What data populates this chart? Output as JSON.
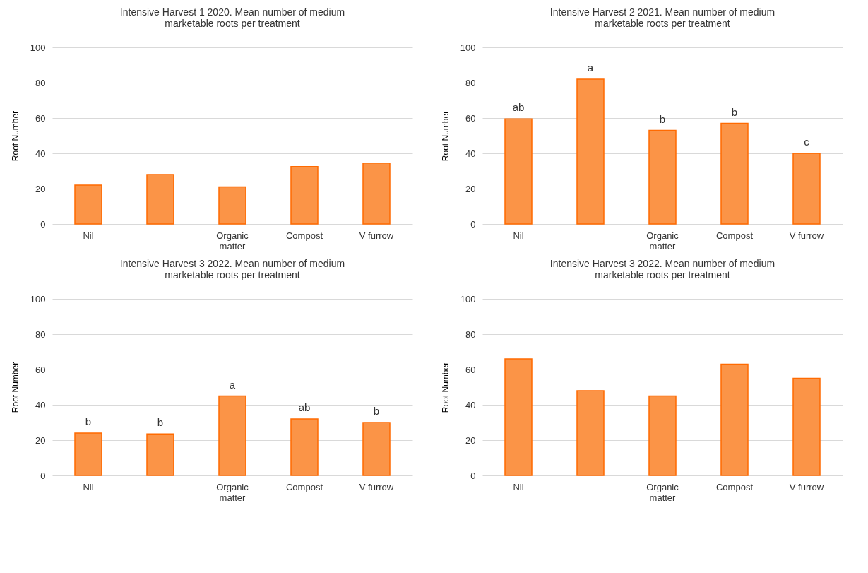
{
  "chart_data": [
    {
      "type": "bar",
      "title": "Intensive Harvest 1 2020. Mean number of medium marketable roots per treatment",
      "ylabel": "Root Number",
      "categories": [
        "Nil",
        null,
        "Organic matter",
        "Compost",
        "V furrow"
      ],
      "values": [
        22,
        28,
        21,
        32.5,
        34.5
      ],
      "color": "#fb9447",
      "ylim": [
        0,
        100
      ],
      "yticks": [
        0,
        20,
        40,
        60,
        80,
        100
      ],
      "grid": "y"
    },
    {
      "type": "bar",
      "title": "Intensive Harvest 2 2021. Mean number of medium marketable roots per treatment",
      "ylabel": "Root Number",
      "categories": [
        "Nil",
        null,
        "Organic matter",
        "Compost",
        "V furrow"
      ],
      "values": [
        59.5,
        82,
        53,
        57,
        40
      ],
      "value_labels": [
        "ab",
        "a",
        "b",
        "b",
        "c"
      ],
      "color": "#fb9447",
      "ylim": [
        0,
        100
      ],
      "yticks": [
        0,
        20,
        40,
        60,
        80,
        100
      ],
      "grid": "y"
    },
    {
      "type": "bar",
      "title": "Intensive Harvest 3 2022. Mean number of medium marketable roots per treatment",
      "ylabel": "Root Number",
      "categories": [
        "Nil",
        null,
        "Organic matter",
        "Compost",
        "V furrow"
      ],
      "values": [
        24,
        23.5,
        45,
        32,
        30
      ],
      "value_labels": [
        "b",
        "b",
        "a",
        "ab",
        "b"
      ],
      "color": "#fb9447",
      "ylim": [
        0,
        100
      ],
      "yticks": [
        0,
        20,
        40,
        60,
        80,
        100
      ],
      "grid": "y"
    },
    {
      "type": "bar",
      "title": "Intensive Harvest 3 2022. Mean number of medium marketable roots per treatment",
      "ylabel": "Root Number",
      "categories": [
        "Nil",
        null,
        "Organic matter",
        "Compost",
        "V furrow"
      ],
      "values": [
        66,
        48,
        45,
        63,
        55
      ],
      "color": "#fb9447",
      "ylim": [
        0,
        100
      ],
      "yticks": [
        0,
        20,
        40,
        60,
        80,
        100
      ],
      "grid": "y"
    }
  ]
}
